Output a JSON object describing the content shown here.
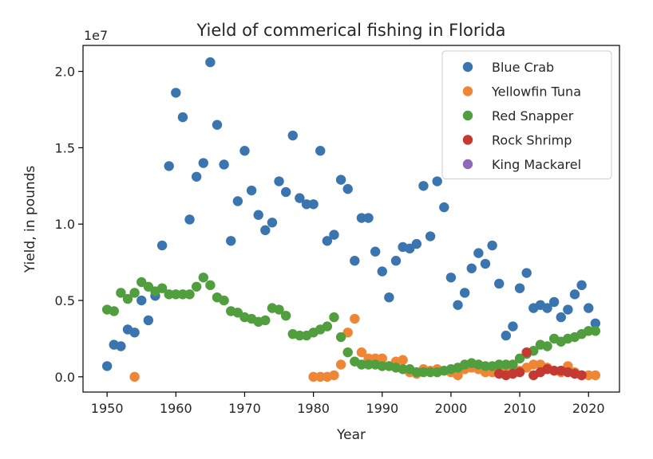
{
  "chart_data": {
    "type": "scatter",
    "title": "Yield of commerical fishing in Florida",
    "xlabel": "Year",
    "ylabel": "Yield, in pounds",
    "y_offset_label": "1e7",
    "y_scale": 10000000,
    "xlim": [
      1946.5,
      2024.5
    ],
    "ylim": [
      -1000000,
      21700000
    ],
    "x_ticks": [
      1950,
      1960,
      1970,
      1980,
      1990,
      2000,
      2010,
      2020
    ],
    "x_tick_labels": [
      "1950",
      "1960",
      "1970",
      "1980",
      "1990",
      "2000",
      "2010",
      "2020"
    ],
    "y_ticks": [
      0,
      5000000,
      10000000,
      15000000,
      20000000
    ],
    "y_tick_labels": [
      "0.0",
      "0.5",
      "1.0",
      "1.5",
      "2.0"
    ],
    "grid": false,
    "legend_position": "top-right",
    "series": [
      {
        "name": "Blue Crab",
        "color": "#3a75af",
        "x": [
          1950,
          1951,
          1952,
          1953,
          1954,
          1955,
          1956,
          1957,
          1958,
          1959,
          1960,
          1961,
          1962,
          1963,
          1964,
          1965,
          1966,
          1967,
          1968,
          1969,
          1970,
          1971,
          1972,
          1973,
          1974,
          1975,
          1976,
          1977,
          1978,
          1979,
          1980,
          1981,
          1982,
          1983,
          1984,
          1985,
          1986,
          1987,
          1988,
          1989,
          1990,
          1991,
          1992,
          1993,
          1994,
          1995,
          1996,
          1997,
          1998,
          1999,
          2000,
          2001,
          2002,
          2003,
          2004,
          2005,
          2006,
          2007,
          2008,
          2009,
          2010,
          2011,
          2012,
          2013,
          2014,
          2015,
          2016,
          2017,
          2018,
          2019,
          2020,
          2021
        ],
        "y": [
          700000,
          2100000,
          2000000,
          3100000,
          2900000,
          5000000,
          3700000,
          5300000,
          8600000,
          13800000,
          18600000,
          17000000,
          10300000,
          13100000,
          14000000,
          20600000,
          16500000,
          13900000,
          8900000,
          11500000,
          14800000,
          12200000,
          10600000,
          9600000,
          10100000,
          12800000,
          12100000,
          15800000,
          11700000,
          11300000,
          11300000,
          14800000,
          8900000,
          9300000,
          12900000,
          12300000,
          7600000,
          10400000,
          10400000,
          8200000,
          6900000,
          5200000,
          7600000,
          8500000,
          8400000,
          8700000,
          12500000,
          9200000,
          12800000,
          11100000,
          6500000,
          4700000,
          5500000,
          7100000,
          8100000,
          7400000,
          8600000,
          6100000,
          2700000,
          3300000,
          5800000,
          6800000,
          4500000,
          4700000,
          4500000,
          4900000,
          3900000,
          4400000,
          5400000,
          6000000,
          4500000,
          3500000
        ]
      },
      {
        "name": "Yellowfin Tuna",
        "color": "#ef8636",
        "x": [
          1954,
          1980,
          1981,
          1982,
          1983,
          1984,
          1985,
          1986,
          1987,
          1988,
          1989,
          1990,
          1991,
          1992,
          1993,
          1994,
          1995,
          1996,
          1997,
          1998,
          1999,
          2000,
          2001,
          2002,
          2003,
          2004,
          2005,
          2006,
          2007,
          2008,
          2009,
          2010,
          2011,
          2012,
          2013,
          2014,
          2015,
          2016,
          2017,
          2018,
          2019,
          2020,
          2021
        ],
        "y": [
          0,
          0,
          0,
          0,
          100000,
          800000,
          2900000,
          3800000,
          1600000,
          1200000,
          1200000,
          1200000,
          700000,
          1000000,
          1100000,
          300000,
          200000,
          500000,
          400000,
          500000,
          400000,
          300000,
          100000,
          500000,
          600000,
          500000,
          300000,
          300000,
          500000,
          400000,
          300000,
          400000,
          600000,
          800000,
          800000,
          600000,
          400000,
          300000,
          700000,
          300000,
          100000,
          100000,
          100000
        ]
      },
      {
        "name": "Red Snapper",
        "color": "#519e3e",
        "x": [
          1950,
          1951,
          1952,
          1953,
          1954,
          1955,
          1956,
          1957,
          1958,
          1959,
          1960,
          1961,
          1962,
          1963,
          1964,
          1965,
          1966,
          1967,
          1968,
          1969,
          1970,
          1971,
          1972,
          1973,
          1974,
          1975,
          1976,
          1977,
          1978,
          1979,
          1980,
          1981,
          1982,
          1983,
          1984,
          1985,
          1986,
          1987,
          1988,
          1989,
          1990,
          1991,
          1992,
          1993,
          1994,
          1995,
          1996,
          1997,
          1998,
          1999,
          2000,
          2001,
          2002,
          2003,
          2004,
          2005,
          2006,
          2007,
          2008,
          2009,
          2010,
          2011,
          2012,
          2013,
          2014,
          2015,
          2016,
          2017,
          2018,
          2019,
          2020,
          2021
        ],
        "y": [
          4400000,
          4300000,
          5500000,
          5100000,
          5500000,
          6200000,
          5900000,
          5600000,
          5800000,
          5400000,
          5400000,
          5400000,
          5400000,
          5900000,
          6500000,
          6000000,
          5200000,
          5000000,
          4300000,
          4200000,
          3900000,
          3800000,
          3600000,
          3700000,
          4500000,
          4400000,
          4000000,
          2800000,
          2700000,
          2700000,
          2900000,
          3100000,
          3300000,
          3900000,
          2600000,
          1600000,
          1000000,
          800000,
          800000,
          800000,
          700000,
          700000,
          600000,
          500000,
          500000,
          300000,
          300000,
          300000,
          300000,
          400000,
          500000,
          600000,
          800000,
          900000,
          800000,
          700000,
          700000,
          800000,
          800000,
          800000,
          1200000,
          1500000,
          1700000,
          2100000,
          2000000,
          2500000,
          2300000,
          2500000,
          2600000,
          2800000,
          3000000,
          3000000
        ]
      },
      {
        "name": "Rock Shrimp",
        "color": "#c43932",
        "x": [
          2007,
          2008,
          2009,
          2010,
          2011,
          2012,
          2013,
          2014,
          2015,
          2016,
          2017,
          2018,
          2019
        ],
        "y": [
          200000,
          100000,
          200000,
          300000,
          1600000,
          100000,
          300000,
          500000,
          400000,
          400000,
          300000,
          200000,
          100000
        ]
      },
      {
        "name": "King Mackarel",
        "color": "#8d69b8",
        "x": [],
        "y": []
      }
    ]
  }
}
